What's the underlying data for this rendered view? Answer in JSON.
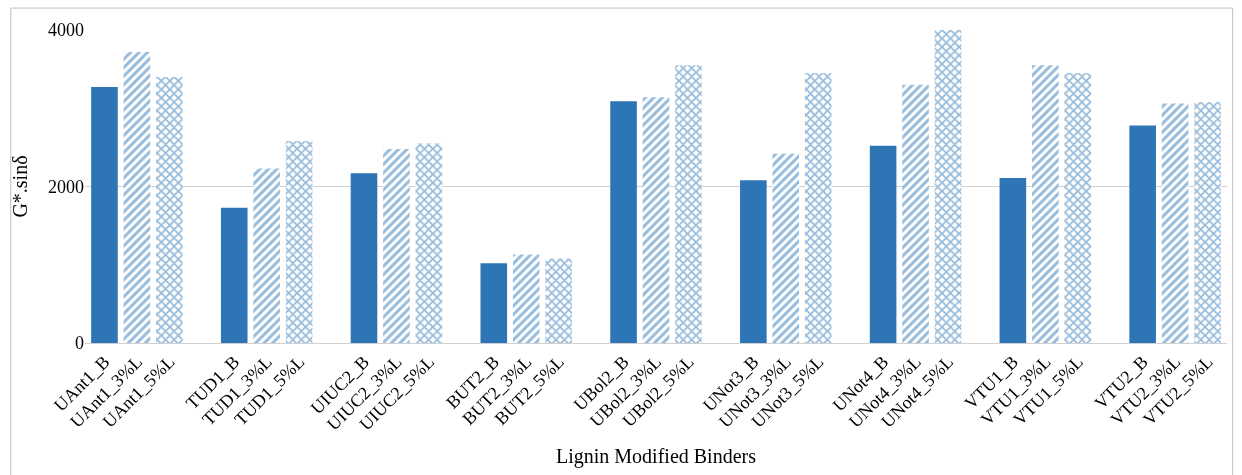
{
  "chart_data": {
    "type": "bar",
    "xlabel": "Lignin Modified Binders",
    "ylabel": "G*.sinδ",
    "categories": [
      "UAnt1_B",
      "UAnt1_3%L",
      "UAnt1_5%L",
      null,
      "TUD1_B",
      "TUD1_3%L",
      "TUD1_5%L",
      null,
      "UIUC2_B",
      "UIUC2_3%L",
      "UIUC2_5%L",
      null,
      "BUT2_B",
      "BUT2_3%L",
      "BUT2_5%L",
      null,
      "UBol2_B",
      "UBol2_3%L",
      "UBol2_5%L",
      null,
      "UNot3_B",
      "UNot3_3%L",
      "UNot3_5%L",
      null,
      "UNot4_B",
      "UNot4_3%L",
      "UNot4_5%L",
      null,
      "VTU1_B",
      "VTU1_3%L",
      "VTU1_5%L",
      null,
      "VTU2_B",
      "VTU2_3%L",
      "VTU2_5%L"
    ],
    "values": [
      3270,
      3720,
      3400,
      null,
      1730,
      2230,
      2580,
      null,
      2170,
      2480,
      2550,
      null,
      1020,
      1130,
      1080,
      null,
      3090,
      3140,
      3550,
      null,
      2080,
      2420,
      3450,
      null,
      2520,
      3300,
      4000,
      null,
      2110,
      3550,
      3450,
      null,
      2780,
      3060,
      3080
    ],
    "color": "#2e75b6",
    "ylim": [
      0,
      4000
    ],
    "yticks": [
      0,
      2000,
      4000
    ],
    "grid": "y",
    "legend": false
  }
}
